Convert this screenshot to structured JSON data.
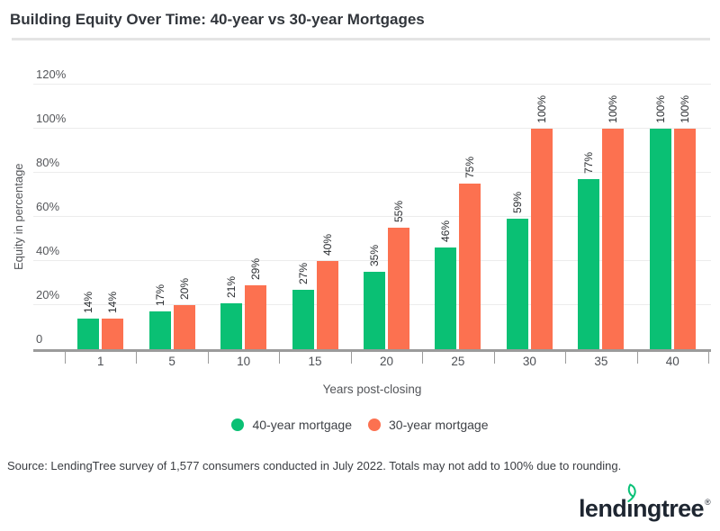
{
  "page": {
    "title": "Building Equity Over Time: 40-year vs 30-year Mortgages",
    "source_note": "Source: LendingTree survey of 1,577 consumers conducted in July 2022. Totals may not add to 100%  due to rounding.",
    "logo": {
      "text_before_i": "lend",
      "dotless_i": "ı",
      "text_after_i": "ngtree",
      "registered_mark": "®",
      "leaf_color": "#08c177",
      "text_color": "#1e2631"
    }
  },
  "colors": {
    "series_green": "#0ac074",
    "series_orange": "#fc7150",
    "title_text": "#31353b",
    "axis_text": "#54565a",
    "gridline": "#ececec",
    "axis_line": "#9b9b9b",
    "divider": "#e4e4e4",
    "background": "#ffffff"
  },
  "chart_data": {
    "type": "bar",
    "title": "Building Equity Over Time: 40-year vs 30-year Mortgages",
    "categories": [
      "1",
      "5",
      "10",
      "15",
      "20",
      "25",
      "30",
      "35",
      "40"
    ],
    "series": [
      {
        "name": "40-year mortgage",
        "color": "#0ac074",
        "values": [
          14,
          17,
          21,
          27,
          35,
          46,
          59,
          77,
          100
        ]
      },
      {
        "name": "30-year mortgage",
        "color": "#fc7150",
        "values": [
          14,
          20,
          29,
          40,
          55,
          75,
          100,
          100,
          100
        ]
      }
    ],
    "xlabel": "Years post-closing",
    "ylabel": "Equity in percentage",
    "ylim": [
      0,
      120
    ],
    "ytick_step": 20,
    "yticks": [
      "0",
      "20%",
      "40%",
      "60%",
      "80%",
      "100%",
      "120%"
    ],
    "data_label_format": "{value}%",
    "data_labels_rotated": true,
    "legend_position": "bottom-center",
    "grid": true
  }
}
